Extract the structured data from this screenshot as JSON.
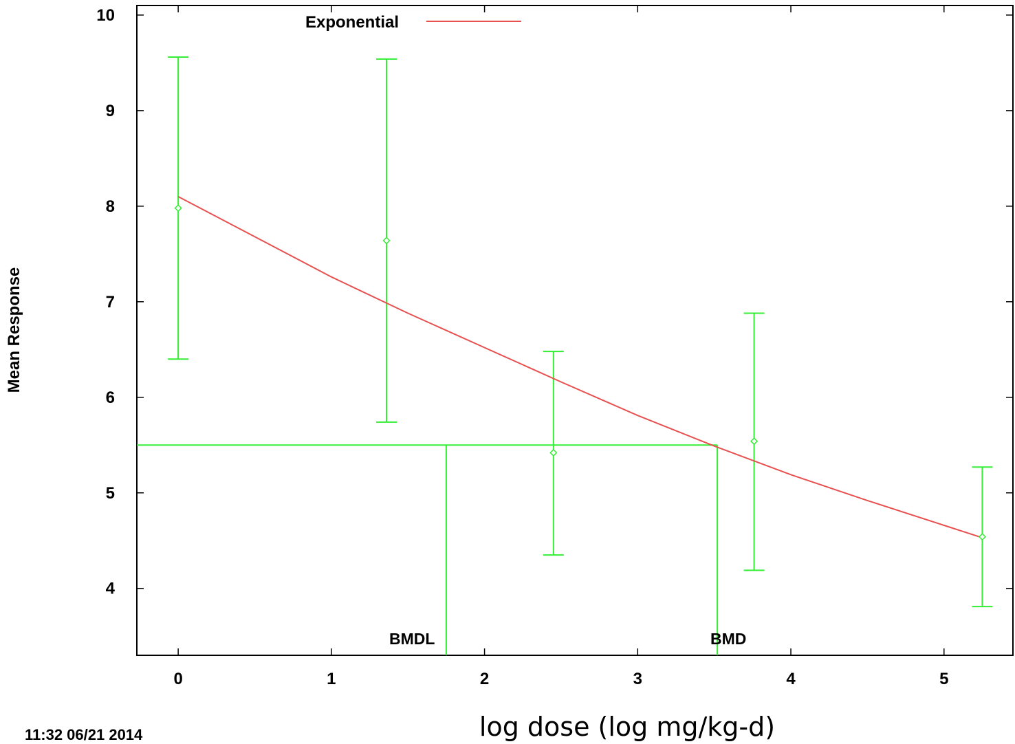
{
  "chart_data": {
    "type": "line",
    "xlabel": "log dose (log mg/kg-d)",
    "ylabel": "Mean Response",
    "xlim": [
      -0.27,
      5.45
    ],
    "ylim": [
      3.3,
      10.1
    ],
    "x_ticks": [
      0,
      1,
      2,
      3,
      4,
      5
    ],
    "y_ticks": [
      4,
      5,
      6,
      7,
      8,
      9,
      10
    ],
    "grid": false,
    "legend": {
      "placement": "top-left",
      "entries": [
        {
          "name": "Exponential",
          "color": "#e8504f"
        }
      ]
    },
    "fit": {
      "name": "Exponential",
      "color": "#e8504f",
      "x": [
        0,
        0.5,
        1.0,
        1.5,
        2.0,
        2.5,
        3.0,
        3.5,
        4.0,
        4.5,
        5.0,
        5.25
      ],
      "y": [
        8.1,
        7.68,
        7.26,
        6.88,
        6.52,
        6.16,
        5.81,
        5.49,
        5.19,
        4.92,
        4.66,
        4.53
      ]
    },
    "observed": {
      "color": "#33ee33",
      "x": [
        0,
        1.36,
        2.45,
        3.76,
        5.25
      ],
      "mean": [
        7.98,
        7.64,
        5.42,
        5.54,
        4.54
      ],
      "lower": [
        6.4,
        5.74,
        4.35,
        4.19,
        3.81
      ],
      "upper": [
        9.56,
        9.54,
        6.48,
        6.88,
        5.27
      ]
    },
    "bmr_level": 5.5,
    "bmdl": {
      "label": "BMDL",
      "x": 1.75
    },
    "bmd": {
      "label": "BMD",
      "x": 3.52
    },
    "timestamp": "11:32 06/21 2014"
  }
}
